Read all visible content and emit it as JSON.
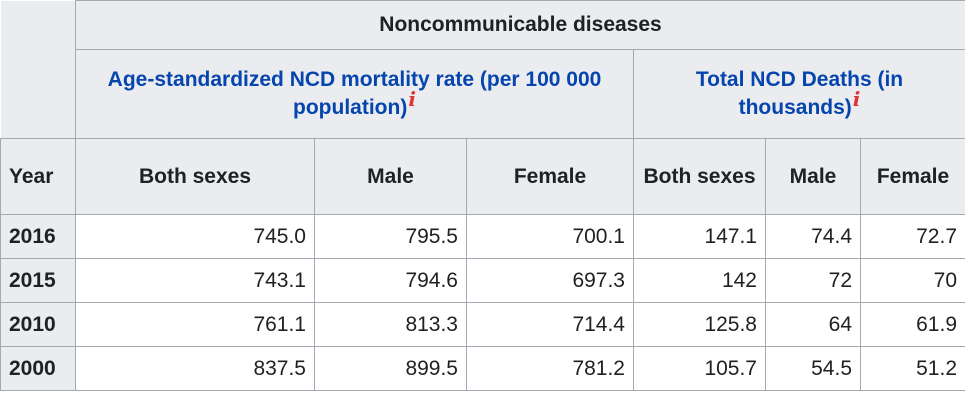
{
  "table": {
    "group_title": "Noncommunicable diseases",
    "subgroups": [
      {
        "label": "Age-standardized NCD mortality rate (per 100 000 population)",
        "info": "i"
      },
      {
        "label": "Total NCD Deaths (in thousands)",
        "info": "i"
      }
    ],
    "columns": [
      "Year",
      "Both sexes",
      "Male",
      "Female",
      "Both sexes",
      "Male",
      "Female"
    ],
    "rows": [
      {
        "year": "2016",
        "rate_both": "745.0",
        "rate_male": "795.5",
        "rate_female": "700.1",
        "deaths_both": "147.1",
        "deaths_male": "74.4",
        "deaths_female": "72.7"
      },
      {
        "year": "2015",
        "rate_both": "743.1",
        "rate_male": "794.6",
        "rate_female": "697.3",
        "deaths_both": "142",
        "deaths_male": "72",
        "deaths_female": "70"
      },
      {
        "year": "2010",
        "rate_both": "761.1",
        "rate_male": "813.3",
        "rate_female": "714.4",
        "deaths_both": "125.8",
        "deaths_male": "64",
        "deaths_female": "61.9"
      },
      {
        "year": "2000",
        "rate_both": "837.5",
        "rate_male": "899.5",
        "rate_female": "781.2",
        "deaths_both": "105.7",
        "deaths_male": "54.5",
        "deaths_female": "51.2"
      }
    ]
  },
  "colors": {
    "header_bg": "#eaecf0",
    "border": "#a2a9b1",
    "link": "#0645ad",
    "info_marker": "#dd3333",
    "text": "#202122"
  }
}
